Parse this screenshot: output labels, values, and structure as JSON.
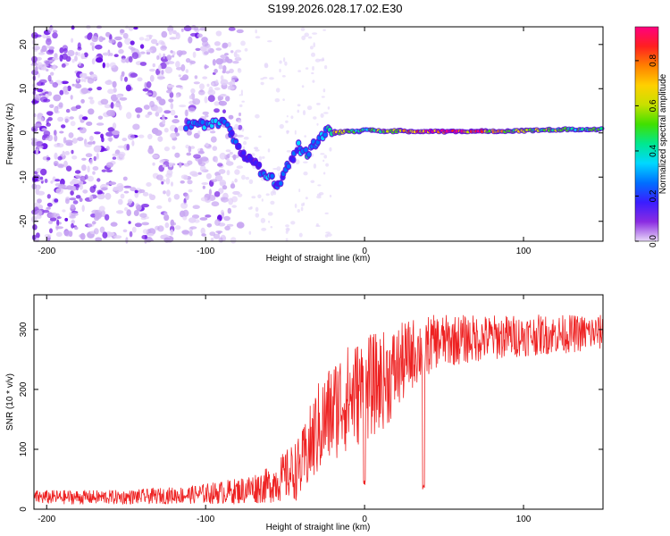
{
  "title": "S199.2026.028.17.02.E30",
  "chart_data": [
    {
      "type": "heatmap",
      "title": "S199.2026.028.17.02.E30",
      "xlabel": "Height of straight line (km)",
      "ylabel": "Frequency (Hz)",
      "xlim": [
        -208,
        150
      ],
      "ylim": [
        -24.5,
        24
      ],
      "xticks": [
        -200,
        -100,
        0,
        100
      ],
      "yticks": [
        -20,
        -10,
        0,
        10,
        20
      ],
      "colorbar": {
        "label": "Normalized spectral amplitude",
        "range": [
          0.0,
          0.95
        ],
        "ticks": [
          0.0,
          0.2,
          0.4,
          0.6,
          0.8
        ],
        "colors": [
          "#e8d8f8",
          "#8a2be2",
          "#3a1dff",
          "#0070ff",
          "#00d8ff",
          "#00e890",
          "#40e000",
          "#c8e000",
          "#ffd000",
          "#ff8000",
          "#ff2020",
          "#ff0080"
        ]
      },
      "ridge": [
        {
          "x": -112,
          "y": 1.5,
          "a": 0.35
        },
        {
          "x": -104,
          "y": 1.8,
          "a": 0.3
        },
        {
          "x": -96,
          "y": 2.2,
          "a": 0.35
        },
        {
          "x": -90,
          "y": 2.5,
          "a": 0.3
        },
        {
          "x": -85,
          "y": 1.0,
          "a": 0.25
        },
        {
          "x": -82,
          "y": -1.5,
          "a": 0.25
        },
        {
          "x": -78,
          "y": -4.5,
          "a": 0.2
        },
        {
          "x": -74,
          "y": -5.5,
          "a": 0.25
        },
        {
          "x": -70,
          "y": -6.5,
          "a": 0.2
        },
        {
          "x": -66,
          "y": -8.0,
          "a": 0.2
        },
        {
          "x": -62,
          "y": -10.0,
          "a": 0.35
        },
        {
          "x": -58,
          "y": -10.5,
          "a": 0.3
        },
        {
          "x": -54,
          "y": -12.0,
          "a": 0.2
        },
        {
          "x": -50,
          "y": -8.5,
          "a": 0.25
        },
        {
          "x": -45,
          "y": -6.0,
          "a": 0.2
        },
        {
          "x": -42,
          "y": -3.0,
          "a": 0.3
        },
        {
          "x": -36,
          "y": -5.0,
          "a": 0.35
        },
        {
          "x": -32,
          "y": -2.5,
          "a": 0.25
        },
        {
          "x": -28,
          "y": -1.5,
          "a": 0.3
        },
        {
          "x": -24,
          "y": 0.5,
          "a": 0.35
        },
        {
          "x": -18,
          "y": 0.0,
          "a": 0.6
        },
        {
          "x": -10,
          "y": 0.5,
          "a": 0.5
        },
        {
          "x": -4,
          "y": 0.2,
          "a": 0.4
        },
        {
          "x": 2,
          "y": 0.8,
          "a": 0.45
        },
        {
          "x": 8,
          "y": 0.5,
          "a": 0.5
        },
        {
          "x": 14,
          "y": 0.3,
          "a": 0.65
        },
        {
          "x": 22,
          "y": 0.5,
          "a": 0.55
        },
        {
          "x": 30,
          "y": 0.3,
          "a": 0.75
        },
        {
          "x": 40,
          "y": 0.3,
          "a": 0.85
        },
        {
          "x": 55,
          "y": 0.3,
          "a": 0.9
        },
        {
          "x": 70,
          "y": 0.4,
          "a": 0.75
        },
        {
          "x": 85,
          "y": 0.4,
          "a": 0.65
        },
        {
          "x": 95,
          "y": 0.5,
          "a": 0.6
        },
        {
          "x": 110,
          "y": 0.6,
          "a": 0.55
        },
        {
          "x": 125,
          "y": 0.8,
          "a": 0.5
        },
        {
          "x": 140,
          "y": 0.8,
          "a": 0.45
        },
        {
          "x": 150,
          "y": 0.8,
          "a": 0.45
        }
      ]
    },
    {
      "type": "line",
      "xlabel": "Height of straight line (km)",
      "ylabel": "SNR (10 * v/v)",
      "xlim": [
        -208,
        150
      ],
      "ylim": [
        0,
        358
      ],
      "xticks": [
        -200,
        -100,
        0,
        100
      ],
      "yticks": [
        0,
        100,
        200,
        300
      ],
      "color": "#ee2222",
      "envelope": [
        {
          "x": -208,
          "mean": 20,
          "spread": 12
        },
        {
          "x": -150,
          "mean": 20,
          "spread": 12
        },
        {
          "x": -110,
          "mean": 24,
          "spread": 15
        },
        {
          "x": -80,
          "mean": 30,
          "spread": 22
        },
        {
          "x": -60,
          "mean": 40,
          "spread": 30
        },
        {
          "x": -40,
          "mean": 70,
          "spread": 55
        },
        {
          "x": -30,
          "mean": 130,
          "spread": 80
        },
        {
          "x": -15,
          "mean": 180,
          "spread": 90
        },
        {
          "x": 0,
          "mean": 200,
          "spread": 90
        },
        {
          "x": 15,
          "mean": 220,
          "spread": 80
        },
        {
          "x": 30,
          "mean": 260,
          "spread": 60
        },
        {
          "x": 45,
          "mean": 280,
          "spread": 45
        },
        {
          "x": 70,
          "mean": 285,
          "spread": 40
        },
        {
          "x": 100,
          "mean": 290,
          "spread": 35
        },
        {
          "x": 150,
          "mean": 295,
          "spread": 30
        }
      ],
      "dips": [
        {
          "x": 37,
          "value": 30
        },
        {
          "x": 0,
          "value": 40
        }
      ]
    }
  ]
}
